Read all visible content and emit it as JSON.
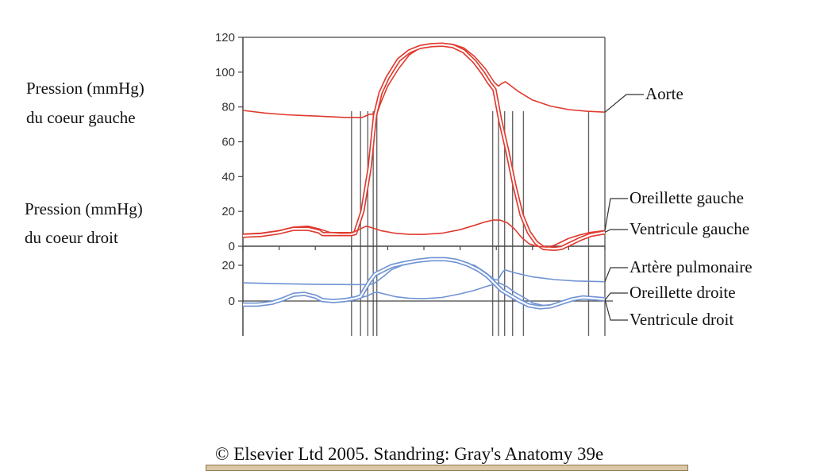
{
  "labels": {
    "left_pressure_title": "Pression (mmHg)",
    "left_pressure_subtitle": "du coeur gauche",
    "right_pressure_title": "Pression (mmHg)",
    "right_pressure_subtitle": "du coeur droit",
    "copyright": "© Elsevier Ltd 2005. Standring: Gray's Anatomy 39e"
  },
  "colors": {
    "left_heart": "#e03a2f",
    "right_heart": "#6f93d3",
    "axis": "#444444",
    "marker_lines": "#666666"
  },
  "chart_data": [
    {
      "type": "line",
      "title": "",
      "xlim": [
        0,
        100
      ],
      "ylim": [
        0,
        120
      ],
      "yticks": [
        0,
        20,
        40,
        60,
        80,
        100,
        120
      ],
      "grid": false,
      "series": [
        {
          "name": "Aorte",
          "style": "single",
          "points": [
            [
              0,
              78
            ],
            [
              6,
              76.5
            ],
            [
              12,
              75.5
            ],
            [
              20,
              74.8
            ],
            [
              28,
              74
            ],
            [
              33,
              74
            ],
            [
              33.5,
              74.5
            ],
            [
              35,
              75.8
            ],
            [
              37,
              76
            ],
            [
              38,
              82
            ],
            [
              40,
              92
            ],
            [
              43,
              102
            ],
            [
              46,
              110
            ],
            [
              49,
              114
            ],
            [
              52,
              116
            ],
            [
              55,
              116.5
            ],
            [
              58,
              116
            ],
            [
              61,
              114
            ],
            [
              64,
              109
            ],
            [
              67,
              102
            ],
            [
              69.5,
              94
            ],
            [
              70.6,
              92
            ],
            [
              71.5,
              93.5
            ],
            [
              72.5,
              94.5
            ],
            [
              73.5,
              93
            ],
            [
              76,
              89
            ],
            [
              80,
              84
            ],
            [
              85,
              80.5
            ],
            [
              90,
              78.5
            ],
            [
              95,
              77.5
            ],
            [
              100,
              77
            ]
          ]
        },
        {
          "name": "Ventricule gauche",
          "style": "double",
          "points": [
            [
              0,
              6
            ],
            [
              5,
              6.5
            ],
            [
              10,
              8
            ],
            [
              14,
              10
            ],
            [
              18,
              10
            ],
            [
              21,
              8.5
            ],
            [
              22,
              7
            ],
            [
              25,
              7
            ],
            [
              30,
              7
            ],
            [
              31,
              7.5
            ],
            [
              33,
              20
            ],
            [
              35,
              45
            ],
            [
              36.5,
              75
            ],
            [
              38,
              88
            ],
            [
              40,
              97
            ],
            [
              43,
              107
            ],
            [
              46,
              112
            ],
            [
              49,
              114.5
            ],
            [
              52,
              115.5
            ],
            [
              55,
              115.8
            ],
            [
              58,
              115
            ],
            [
              61,
              112
            ],
            [
              64,
              106
            ],
            [
              66.5,
              99
            ],
            [
              68,
              94
            ],
            [
              69.5,
              90
            ],
            [
              71,
              73
            ],
            [
              73,
              55
            ],
            [
              75,
              35
            ],
            [
              77,
              18
            ],
            [
              79,
              8
            ],
            [
              81,
              2
            ],
            [
              83,
              -1
            ],
            [
              86,
              -1.5
            ],
            [
              88,
              -1
            ],
            [
              89,
              0
            ],
            [
              91,
              2
            ],
            [
              93,
              4
            ],
            [
              96,
              6.5
            ],
            [
              100,
              8
            ]
          ]
        },
        {
          "name": "Oreillette gauche",
          "style": "single",
          "points": [
            [
              0,
              7
            ],
            [
              5,
              7.5
            ],
            [
              10,
              9
            ],
            [
              14,
              11
            ],
            [
              18,
              11.5
            ],
            [
              21,
              10
            ],
            [
              24,
              8
            ],
            [
              27,
              7.5
            ],
            [
              30,
              7.6
            ],
            [
              32,
              9.5
            ],
            [
              34,
              11.5
            ],
            [
              35,
              11
            ],
            [
              38,
              9
            ],
            [
              42,
              7.5
            ],
            [
              46,
              6.8
            ],
            [
              50,
              6.8
            ],
            [
              55,
              7.5
            ],
            [
              60,
              9.5
            ],
            [
              64,
              12
            ],
            [
              67,
              14
            ],
            [
              69,
              15
            ],
            [
              71,
              15
            ],
            [
              73,
              13.5
            ],
            [
              75,
              10
            ],
            [
              77,
              5
            ],
            [
              79,
              1.5
            ],
            [
              81,
              0
            ],
            [
              84,
              -0.5
            ],
            [
              86,
              0.5
            ],
            [
              88,
              2.5
            ],
            [
              90,
              4.5
            ],
            [
              93,
              6.5
            ],
            [
              96,
              8
            ],
            [
              100,
              9
            ]
          ]
        }
      ]
    },
    {
      "type": "line",
      "title": "",
      "xlim": [
        0,
        100
      ],
      "ylim": [
        -10,
        24
      ],
      "yticks": [
        0,
        20
      ],
      "grid": false,
      "series": [
        {
          "name": "Artère pulmonaire",
          "style": "single",
          "points": [
            [
              0,
              10.2
            ],
            [
              10,
              9.7
            ],
            [
              20,
              9.4
            ],
            [
              30,
              9.2
            ],
            [
              34,
              9.2
            ],
            [
              36,
              9.5
            ],
            [
              37,
              11
            ],
            [
              39,
              14
            ],
            [
              41,
              17.5
            ],
            [
              44,
              20
            ],
            [
              48,
              22
            ],
            [
              52,
              22.8
            ],
            [
              56,
              22.8
            ],
            [
              60,
              22
            ],
            [
              64,
              20
            ],
            [
              67,
              16
            ],
            [
              69.5,
              12
            ],
            [
              70.5,
              11.8
            ],
            [
              71.5,
              15.5
            ],
            [
              72.3,
              17.5
            ],
            [
              75,
              15.8
            ],
            [
              80,
              13.5
            ],
            [
              86,
              12
            ],
            [
              92,
              11.2
            ],
            [
              100,
              10.8
            ]
          ]
        },
        {
          "name": "Oreillette droite",
          "style": "single",
          "points": [
            [
              0,
              -1.5
            ],
            [
              5,
              -1.2
            ],
            [
              9,
              0
            ],
            [
              12,
              2
            ],
            [
              15,
              3.5
            ],
            [
              18,
              3
            ],
            [
              21,
              1
            ],
            [
              24,
              0
            ],
            [
              28,
              0.5
            ],
            [
              32,
              1.5
            ],
            [
              34.5,
              3
            ],
            [
              36,
              4.5
            ],
            [
              37,
              5
            ],
            [
              39,
              4
            ],
            [
              42,
              2.5
            ],
            [
              46,
              1.5
            ],
            [
              50,
              1.3
            ],
            [
              55,
              2
            ],
            [
              60,
              4
            ],
            [
              64,
              6
            ],
            [
              67,
              8
            ],
            [
              69.5,
              9.5
            ],
            [
              71,
              10
            ],
            [
              73,
              8
            ],
            [
              75,
              5
            ],
            [
              78,
              1.5
            ],
            [
              80,
              -1
            ],
            [
              83,
              -2.5
            ],
            [
              86,
              -2
            ],
            [
              88,
              -0.5
            ],
            [
              91,
              0.5
            ],
            [
              94,
              1.2
            ],
            [
              97,
              0.8
            ],
            [
              100,
              0.5
            ]
          ]
        },
        {
          "name": "Ventricule droit",
          "style": "double",
          "points": [
            [
              0,
              -2
            ],
            [
              4,
              -2
            ],
            [
              8,
              -1
            ],
            [
              11,
              1
            ],
            [
              14,
              3.5
            ],
            [
              17,
              4
            ],
            [
              20,
              2.5
            ],
            [
              22,
              0.5
            ],
            [
              25,
              0
            ],
            [
              28,
              0.5
            ],
            [
              31,
              1.5
            ],
            [
              32.5,
              2.5
            ],
            [
              33.5,
              6
            ],
            [
              35,
              11
            ],
            [
              36.5,
              15
            ],
            [
              38.5,
              17
            ],
            [
              41,
              19.5
            ],
            [
              44,
              21
            ],
            [
              48,
              22.5
            ],
            [
              52,
              23.4
            ],
            [
              56,
              23.4
            ],
            [
              59,
              22.5
            ],
            [
              62,
              20.5
            ],
            [
              65,
              17.5
            ],
            [
              67.5,
              14
            ],
            [
              69.5,
              10
            ],
            [
              71.5,
              6
            ],
            [
              74,
              3
            ],
            [
              76.5,
              0
            ],
            [
              79,
              -2.5
            ],
            [
              82,
              -3.5
            ],
            [
              85,
              -3
            ],
            [
              88,
              -1
            ],
            [
              91,
              1
            ],
            [
              94,
              2
            ],
            [
              97,
              1.5
            ],
            [
              100,
              1
            ]
          ]
        }
      ]
    }
  ],
  "event_markers_x": [
    30,
    32.5,
    34.5,
    36,
    37,
    69,
    70.6,
    72.3,
    74.5,
    77.5,
    95.5
  ],
  "legend": [
    {
      "text": "Aorte",
      "series": "Aorte"
    },
    {
      "text": "Oreillette gauche",
      "series": "Oreillette gauche"
    },
    {
      "text": "Ventricule gauche",
      "series": "Ventricule gauche"
    },
    {
      "text": "Artère pulmonaire",
      "series": "Artère pulmonaire"
    },
    {
      "text": "Oreillette droite",
      "series": "Oreillette droite"
    },
    {
      "text": "Ventricule droit",
      "series": "Ventricule droit"
    }
  ]
}
